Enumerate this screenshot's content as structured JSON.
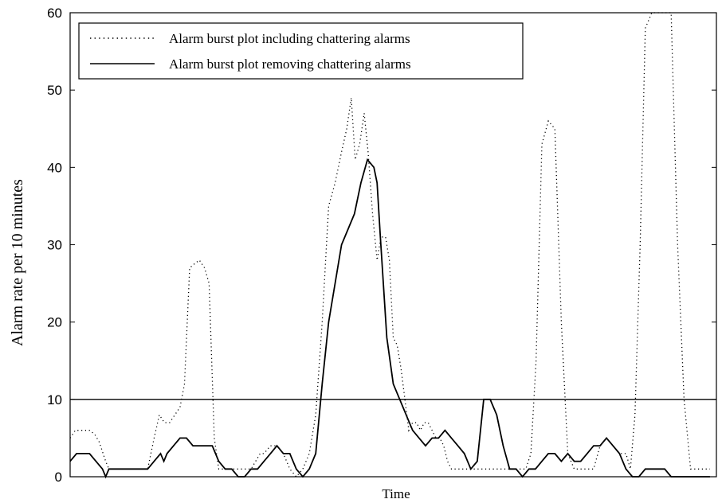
{
  "chart_data": {
    "type": "line",
    "title": "",
    "xlabel": "Time",
    "ylabel": "Alarm rate per 10 minutes",
    "ylim": [
      0,
      60
    ],
    "xlim": [
      0,
      100
    ],
    "y_ticks": [
      "0",
      "10",
      "20",
      "30",
      "40",
      "50",
      "60"
    ],
    "x_tick_labels": [],
    "grid": false,
    "legend_position": "top-left",
    "threshold": {
      "y": 10
    },
    "series": [
      {
        "name": "Alarm burst plot including chattering alarms",
        "style": "dotted",
        "x": [
          0,
          0.8,
          1.5,
          2.3,
          3,
          3.8,
          4.5,
          5.5,
          6,
          7,
          8,
          9,
          10,
          11,
          12,
          13,
          13.8,
          14.6,
          15.4,
          16.2,
          17,
          17.7,
          18.5,
          19.2,
          20,
          20.8,
          21.5,
          22.3,
          23,
          23.8,
          24.5,
          25.2,
          25.9,
          26.6,
          27.3,
          28,
          28.7,
          29.4,
          30,
          31,
          32,
          33,
          34,
          35,
          36,
          37,
          38,
          39,
          40,
          41,
          42,
          42.8,
          43.5,
          44.1,
          44.8,
          45.5,
          46.1,
          46.8,
          47.5,
          48.1,
          48.8,
          49.4,
          50,
          50.6,
          51.2,
          51.8,
          52.4,
          53,
          53.6,
          54.2,
          54.8,
          55.4,
          56,
          56.6,
          57.2,
          57.8,
          58.4,
          59,
          60,
          61,
          62,
          63,
          64,
          65,
          66,
          66.8,
          67.6,
          68.5,
          69.5,
          70.5,
          71.3,
          72.1,
          73,
          74,
          75,
          76,
          77,
          78,
          79,
          80,
          81,
          82,
          83,
          84,
          85,
          86,
          86.7,
          87.4,
          88.2,
          89,
          90,
          91,
          92,
          93,
          94,
          95,
          96,
          97,
          98,
          99
        ],
        "y": [
          5,
          6,
          6,
          6,
          6,
          5.5,
          4.5,
          2,
          1,
          1,
          1,
          1,
          1,
          1,
          1,
          5,
          8,
          7,
          7,
          8,
          9,
          12,
          27,
          27.5,
          28,
          27,
          25,
          5,
          1,
          1,
          1,
          1,
          1,
          1,
          1,
          1,
          2,
          3,
          3,
          4,
          4,
          3,
          1,
          0,
          1,
          3,
          8,
          20,
          35,
          38,
          42,
          45,
          49,
          41,
          43,
          47,
          42,
          34,
          28,
          31,
          31,
          28,
          18,
          17,
          14,
          10,
          6,
          7,
          7,
          6,
          7,
          7,
          6,
          5,
          5,
          4,
          2,
          1,
          1,
          1,
          1,
          1,
          1,
          1,
          1,
          1,
          1,
          1,
          1,
          1,
          3,
          15,
          43,
          46,
          45,
          20,
          3,
          1,
          1,
          1,
          1,
          4,
          5,
          4,
          3,
          3,
          1,
          8,
          30,
          58,
          60,
          60,
          60,
          60,
          30,
          10,
          1,
          1,
          1,
          1
        ],
        "_note": ""
      },
      {
        "name": "Alarm burst plot removing chattering alarms",
        "style": "solid",
        "x": [
          0,
          1,
          1.5,
          2,
          3,
          4,
          5,
          5.5,
          6,
          7,
          8,
          9,
          10,
          11,
          12,
          13,
          14,
          14.5,
          15,
          16,
          17,
          18,
          19,
          20,
          21,
          22,
          23,
          24,
          25,
          26,
          27,
          28,
          29,
          30,
          31,
          32,
          33,
          34,
          35,
          36,
          37,
          38,
          39,
          40,
          41,
          42,
          43,
          44,
          45,
          46,
          47,
          47.5,
          48,
          49,
          50,
          51,
          52,
          53,
          54,
          55,
          56,
          57,
          58,
          59,
          60,
          61,
          62,
          63,
          64,
          65,
          66,
          67,
          68,
          69,
          70,
          71,
          72,
          73,
          74,
          75,
          76,
          77,
          78,
          79,
          80,
          81,
          82,
          83,
          84,
          85,
          86,
          87,
          88,
          89,
          90,
          91,
          92,
          93,
          94,
          95,
          96,
          97,
          98,
          99
        ],
        "y": [
          2,
          3,
          3,
          3,
          3,
          2,
          1,
          0,
          1,
          1,
          1,
          1,
          1,
          1,
          1,
          2,
          3,
          2,
          3,
          4,
          5,
          5,
          4,
          4,
          4,
          4,
          2,
          1,
          1,
          0,
          0,
          1,
          1,
          2,
          3,
          4,
          3,
          3,
          1,
          0,
          1,
          3,
          12,
          20,
          25,
          30,
          32,
          34,
          38,
          41,
          40,
          38,
          31,
          18,
          12,
          10,
          8,
          6,
          5,
          4,
          5,
          5,
          6,
          5,
          4,
          3,
          1,
          2,
          10,
          10,
          8,
          4,
          1,
          1,
          0,
          1,
          1,
          2,
          3,
          3,
          2,
          3,
          2,
          2,
          3,
          4,
          4,
          5,
          4,
          3,
          1,
          0,
          0,
          1,
          1,
          1,
          1,
          0,
          0,
          0,
          0,
          0,
          0,
          0
        ],
        "_note": ""
      }
    ]
  }
}
